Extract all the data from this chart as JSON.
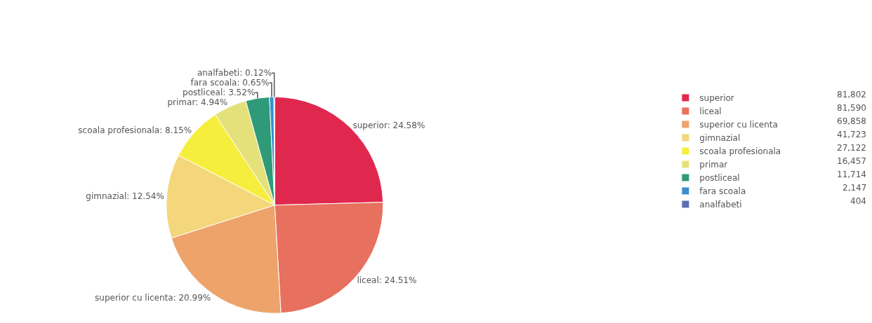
{
  "chart_data": {
    "type": "pie",
    "categories": [
      "superior",
      "liceal",
      "superior cu licenta",
      "gimnazial",
      "scoala profesionala",
      "primar",
      "postliceal",
      "fara scoala",
      "analfabeti"
    ],
    "values": [
      24.58,
      24.51,
      20.99,
      12.54,
      8.15,
      4.94,
      3.52,
      0.65,
      0.12
    ],
    "value_labels": [
      "superior: 24.58%",
      "liceal: 24.51%",
      "superior cu licenta: 20.99%",
      "gimnazial: 12.54%",
      "scoala profesionala: 8.15%",
      "primar: 4.94%",
      "postliceal: 3.52%",
      "fara scoala: 0.65%",
      "analfabeti: 0.12%"
    ],
    "colors": [
      "#e0284f",
      "#e8705f",
      "#eea36a",
      "#f3d77a",
      "#f6ee3c",
      "#e4e17a",
      "#2e9a78",
      "#3a8fd0",
      "#5a70b2"
    ],
    "annotations": [
      "81,802",
      "81,590",
      "69,858",
      "41,723",
      "27,122",
      "16,457",
      "11,714",
      "2,147",
      "404"
    ],
    "legend": "right"
  }
}
